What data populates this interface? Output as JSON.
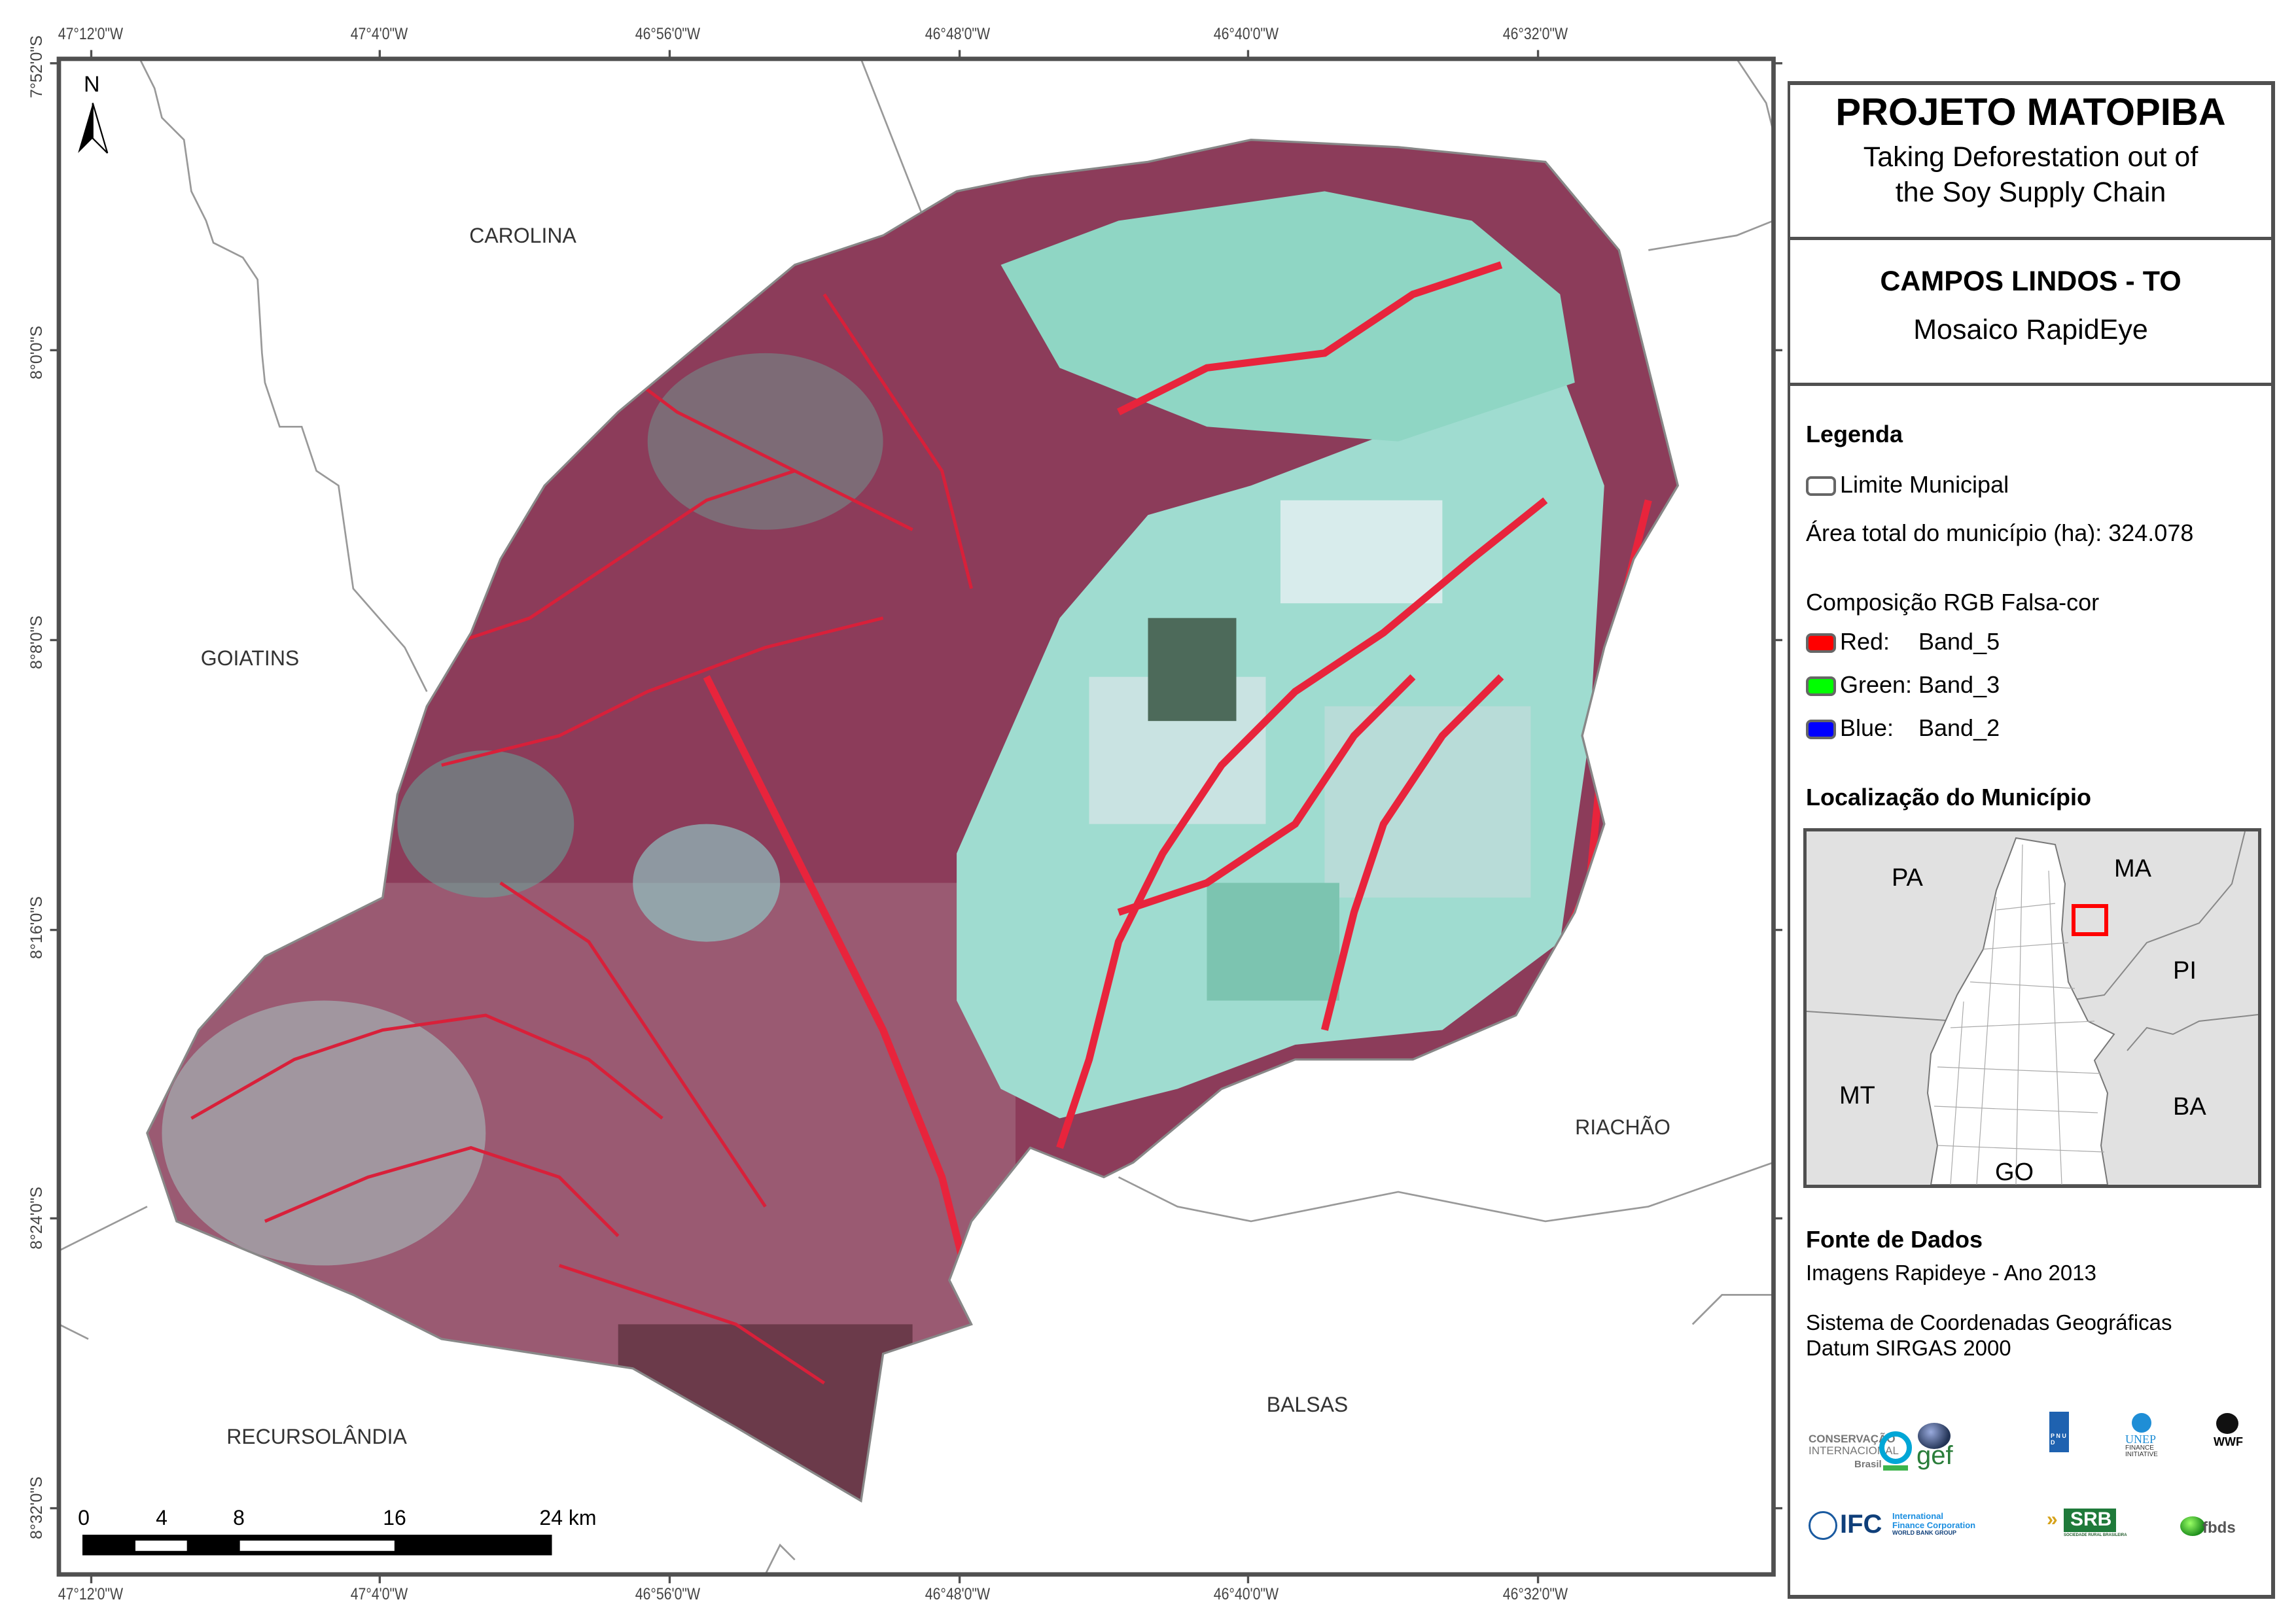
{
  "header": {
    "project_title": "PROJETO MATOPIBA",
    "subtitle_line1": "Taking Deforestation out of",
    "subtitle_line2": "the Soy Supply Chain",
    "municipality_title": "CAMPOS LINDOS - TO",
    "mosaic_label": "Mosaico RapidEye"
  },
  "legend": {
    "title": "Legenda",
    "limit_label": "Limite Municipal",
    "area_label": "Área total do município (ha): 324.078",
    "composition_title": "Composição RGB Falsa-cor",
    "bands": [
      {
        "channel": "Red:",
        "band": "Band_5",
        "color": "#ff0000"
      },
      {
        "channel": "Green:",
        "band": "Band_3",
        "color": "#00ff00"
      },
      {
        "channel": "Blue:",
        "band": "Band_2",
        "color": "#0000ff"
      }
    ]
  },
  "location": {
    "title": "Localização do Município",
    "states": [
      "PA",
      "MA",
      "PI",
      "MT",
      "BA",
      "GO"
    ],
    "highlight_color": "#ff0000"
  },
  "sources": {
    "title": "Fonte de Dados",
    "imagery": "Imagens Rapideye - Ano 2013",
    "crs_line1": "Sistema de Coordenadas Geográficas",
    "crs_line2": "Datum SIRGAS 2000"
  },
  "logos": {
    "ci_line1": "CONSERVAÇÃO",
    "ci_line2": "INTERNACIONAL",
    "ci_line3": "Brasil",
    "gef": "gef",
    "pnud": "P N U D",
    "unep_line1": "UNEP",
    "unep_line2": "FINANCE",
    "unep_line3": "INITIATIVE",
    "wwf": "WWF",
    "ifc": "IFC",
    "ifc_line1": "International",
    "ifc_line2": "Finance Corporation",
    "ifc_line3": "WORLD BANK GROUP",
    "srb": "SRB",
    "srb_sub": "SOCIEDADE RURAL BRASILEIRA",
    "fbds": "fbds"
  },
  "map": {
    "north_label": "N",
    "longitude_labels": [
      "47°12'0\"W",
      "47°4'0\"W",
      "46°56'0\"W",
      "46°48'0\"W",
      "46°40'0\"W",
      "46°32'0\"W"
    ],
    "latitude_labels": [
      "7°52'0\"S",
      "8°0'0\"S",
      "8°8'0\"S",
      "8°16'0\"S",
      "8°24'0\"S",
      "8°32'0\"S"
    ],
    "neighbors": [
      "CAROLINA",
      "GOIATINS",
      "RECURSOLÂNDIA",
      "BALSAS",
      "RIACHÃO"
    ],
    "scale_bar": {
      "ticks": [
        "0",
        "4",
        "8",
        "16",
        "24 km"
      ]
    }
  }
}
